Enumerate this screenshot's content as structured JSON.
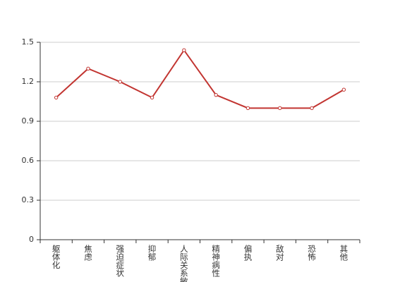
{
  "chart_data": {
    "type": "line",
    "categories": [
      "躯体化",
      "焦虑",
      "强迫症状",
      "抑郁",
      "人际关系敏感",
      "精神病性",
      "偏执",
      "敌对",
      "恐怖",
      "其他"
    ],
    "series": [
      {
        "color": "#c23531",
        "values": [
          1.08,
          1.3,
          1.2,
          1.08,
          1.44,
          1.1,
          1.0,
          1.0,
          1.0,
          1.14
        ]
      }
    ],
    "ylim": [
      0,
      1.5
    ],
    "yticks": [
      0,
      0.3,
      0.6,
      0.9,
      1.2,
      1.5
    ],
    "grid": true
  }
}
